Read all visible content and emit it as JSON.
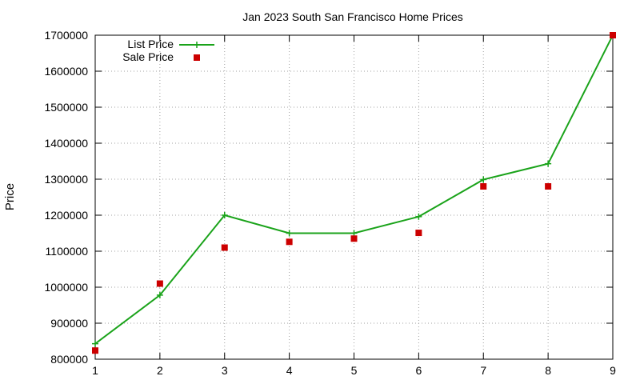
{
  "chart_data": {
    "type": "line",
    "title": "Jan 2023 South San Francisco Home Prices",
    "xlabel": "",
    "ylabel": "Price",
    "x": [
      1,
      2,
      3,
      4,
      5,
      6,
      7,
      8,
      9
    ],
    "xlim": [
      1,
      9
    ],
    "ylim": [
      800000,
      1700000
    ],
    "x_ticks": [
      "1",
      "2",
      "3",
      "4",
      "5",
      "6",
      "7",
      "8",
      "9"
    ],
    "y_ticks": [
      "800000",
      "900000",
      "1000000",
      "1100000",
      "1200000",
      "1300000",
      "1400000",
      "1500000",
      "1600000",
      "1700000"
    ],
    "grid": true,
    "legend_position": "top-left",
    "series": [
      {
        "name": "List Price",
        "style": "lines+points",
        "marker": "plus",
        "color": "#1aa31a",
        "values": [
          843000,
          978000,
          1200000,
          1150000,
          1150000,
          1196000,
          1299000,
          1343000,
          1700000
        ]
      },
      {
        "name": "Sale Price",
        "style": "points",
        "marker": "square",
        "color": "#cc0000",
        "values": [
          824000,
          1010000,
          1110000,
          1126000,
          1135000,
          1151000,
          1280000,
          1280000,
          1700000
        ]
      }
    ]
  }
}
